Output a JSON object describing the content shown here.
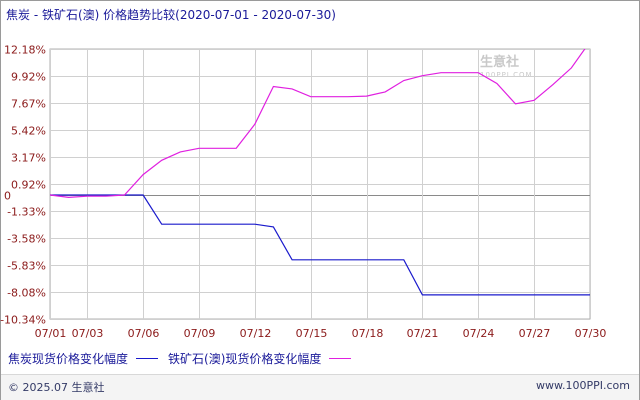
{
  "header": {
    "title": "焦炭 - 铁矿石(澳) 价格趋势比较(2020-07-01 - 2020-07-30)"
  },
  "watermark": {
    "brand": "生意社",
    "url": "100PPI.COM"
  },
  "footer": {
    "copyright": "© 2025.07 生意社",
    "site": "www.100PPI.com"
  },
  "colors": {
    "coke": "#1a1acc",
    "iron_ore": "#e020e0",
    "grid": "#d0d0d0",
    "axis_text": "#8b1a1a"
  },
  "chart_data": {
    "type": "line",
    "title": "焦炭 - 铁矿石(澳) 价格趋势比较(2020-07-01 - 2020-07-30)",
    "xlabel": "",
    "ylabel": "",
    "x_ticks": [
      "07/01",
      "07/03",
      "07/06",
      "07/09",
      "07/12",
      "07/15",
      "07/18",
      "07/21",
      "07/24",
      "07/27",
      "07/30"
    ],
    "y_ticks": [
      "12.18%",
      "9.92%",
      "7.67%",
      "5.42%",
      "3.17%",
      "0.92%",
      "0",
      "-1.33%",
      "-3.58%",
      "-5.83%",
      "-8.08%",
      "-10.34%"
    ],
    "ylim": [
      -10.34,
      12.18
    ],
    "grid": true,
    "legend_position": "bottom-left",
    "series": [
      {
        "name": "焦炭现货价格变化幅度",
        "points": [
          [
            "07/01",
            0
          ],
          [
            "07/02",
            0
          ],
          [
            "07/03",
            0
          ],
          [
            "07/04",
            0
          ],
          [
            "07/05",
            0
          ],
          [
            "07/06",
            0
          ],
          [
            "07/07",
            -2.43
          ],
          [
            "07/08",
            -2.43
          ],
          [
            "07/09",
            -2.43
          ],
          [
            "07/10",
            -2.43
          ],
          [
            "07/11",
            -2.43
          ],
          [
            "07/12",
            -2.43
          ],
          [
            "07/13",
            -2.66
          ],
          [
            "07/14",
            -5.4
          ],
          [
            "07/15",
            -5.4
          ],
          [
            "07/16",
            -5.4
          ],
          [
            "07/17",
            -5.4
          ],
          [
            "07/18",
            -5.4
          ],
          [
            "07/19",
            -5.4
          ],
          [
            "07/20",
            -5.4
          ],
          [
            "07/21",
            -8.33
          ],
          [
            "07/22",
            -8.33
          ],
          [
            "07/23",
            -8.33
          ],
          [
            "07/24",
            -8.33
          ],
          [
            "07/25",
            -8.33
          ],
          [
            "07/26",
            -8.33
          ],
          [
            "07/27",
            -8.33
          ],
          [
            "07/28",
            -8.33
          ],
          [
            "07/29",
            -8.33
          ],
          [
            "07/30",
            -8.33
          ]
        ]
      },
      {
        "name": "铁矿石(澳)现货价格变化幅度",
        "points": [
          [
            "07/01",
            0
          ],
          [
            "07/02",
            -0.2
          ],
          [
            "07/03",
            -0.1
          ],
          [
            "07/04",
            -0.1
          ],
          [
            "07/05",
            0
          ],
          [
            "07/06",
            1.7
          ],
          [
            "07/07",
            2.9
          ],
          [
            "07/08",
            3.6
          ],
          [
            "07/09",
            3.9
          ],
          [
            "07/10",
            3.9
          ],
          [
            "07/11",
            3.9
          ],
          [
            "07/12",
            5.9
          ],
          [
            "07/13",
            9.05
          ],
          [
            "07/14",
            8.85
          ],
          [
            "07/15",
            8.2
          ],
          [
            "07/16",
            8.2
          ],
          [
            "07/17",
            8.2
          ],
          [
            "07/18",
            8.25
          ],
          [
            "07/19",
            8.6
          ],
          [
            "07/20",
            9.55
          ],
          [
            "07/21",
            9.95
          ],
          [
            "07/22",
            10.2
          ],
          [
            "07/23",
            10.2
          ],
          [
            "07/24",
            10.2
          ],
          [
            "07/25",
            9.3
          ],
          [
            "07/26",
            7.6
          ],
          [
            "07/27",
            7.9
          ],
          [
            "07/28",
            9.2
          ],
          [
            "07/29",
            10.6
          ],
          [
            "07/30",
            12.8
          ]
        ]
      }
    ]
  }
}
